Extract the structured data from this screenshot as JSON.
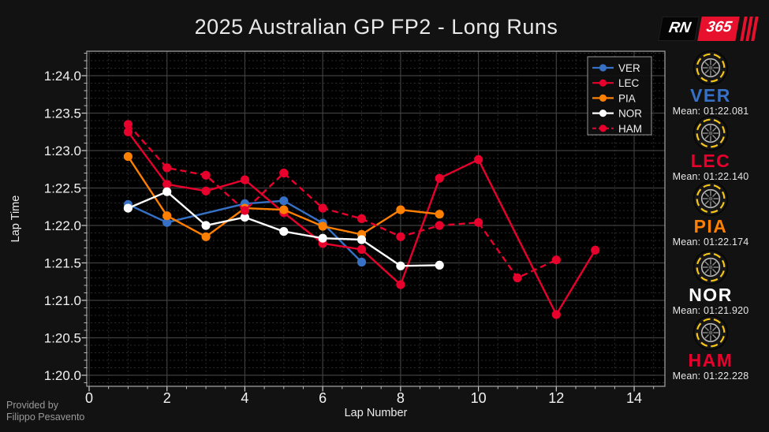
{
  "header": {
    "title": "2025 Australian GP FP2 - Long Runs"
  },
  "logo": {
    "rn": "RN",
    "num": "365"
  },
  "credit": {
    "line1": "Provided by",
    "line2": "Filippo Pesavento"
  },
  "chart_data": {
    "type": "line",
    "title": "2025 Australian GP FP2 - Long Runs",
    "xlabel": "Lap Number",
    "ylabel": "Lap Time",
    "grid": true,
    "legend_position": "top-right",
    "xlim": [
      -0.1,
      14.8
    ],
    "ylim_seconds": [
      79.85,
      84.33
    ],
    "xticks": {
      "values": [
        0,
        2,
        4,
        6,
        8,
        10,
        12,
        14
      ],
      "labels": [
        "0",
        "2",
        "4",
        "6",
        "8",
        "10",
        "12",
        "14"
      ]
    },
    "yticks": {
      "values": [
        84.0,
        83.5,
        83.0,
        82.5,
        82.0,
        81.5,
        81.0,
        80.5,
        80.0
      ],
      "labels": [
        "1:24.0",
        "1:23.5",
        "1:23.0",
        "1:22.5",
        "1:22.0",
        "1:21.5",
        "1:21.0",
        "1:20.5",
        "1:20.0"
      ]
    },
    "minor_x_step": 0.5,
    "minor_y_step": 0.1,
    "series": [
      {
        "name": "VER",
        "color": "#3671C6",
        "line_style": "solid",
        "x": [
          1,
          2,
          4,
          5,
          6,
          7
        ],
        "y": [
          82.28,
          82.04,
          82.29,
          82.33,
          82.03,
          81.51
        ]
      },
      {
        "name": "LEC",
        "color": "#E8002D",
        "line_style": "solid",
        "x": [
          1,
          2,
          3,
          4,
          5,
          6,
          7,
          8,
          9,
          10,
          12,
          13
        ],
        "y": [
          83.25,
          82.55,
          82.46,
          82.61,
          82.17,
          81.76,
          81.68,
          81.21,
          82.63,
          82.88,
          80.81,
          81.67
        ]
      },
      {
        "name": "PIA",
        "color": "#FF8000",
        "line_style": "solid",
        "x": [
          1,
          2,
          3,
          4,
          5,
          6,
          7,
          8,
          9
        ],
        "y": [
          82.92,
          82.13,
          81.85,
          82.23,
          82.21,
          81.99,
          81.88,
          82.21,
          82.15
        ]
      },
      {
        "name": "NOR",
        "color": "#FFFFFF",
        "line_style": "solid",
        "x": [
          1,
          2,
          3,
          4,
          5,
          6,
          7,
          8,
          9
        ],
        "y": [
          82.23,
          82.45,
          82.0,
          82.11,
          81.92,
          81.83,
          81.81,
          81.46,
          81.47
        ]
      },
      {
        "name": "HAM",
        "color": "#E8002D",
        "line_style": "dashed",
        "x": [
          1,
          2,
          3,
          4,
          5,
          6,
          7,
          8,
          9,
          10,
          11,
          12
        ],
        "y": [
          83.35,
          82.77,
          82.67,
          82.2,
          82.7,
          82.23,
          82.09,
          81.85,
          82.0,
          82.04,
          81.3,
          81.54
        ]
      }
    ]
  },
  "sidebar": {
    "drivers": [
      {
        "code": "VER",
        "color": "#3671C6",
        "mean_label": "Mean: 01:22.081",
        "tyre": "medium-tyre-icon"
      },
      {
        "code": "LEC",
        "color": "#E8002D",
        "mean_label": "Mean: 01:22.140",
        "tyre": "medium-tyre-icon"
      },
      {
        "code": "PIA",
        "color": "#FF8000",
        "mean_label": "Mean: 01:22.174",
        "tyre": "medium-tyre-icon"
      },
      {
        "code": "NOR",
        "color": "#FFFFFF",
        "mean_label": "Mean: 01:21.920",
        "tyre": "medium-tyre-icon"
      },
      {
        "code": "HAM",
        "color": "#E8002D",
        "mean_label": "Mean: 01:22.228",
        "tyre": "medium-tyre-icon"
      }
    ]
  },
  "theme": {
    "background": "#121212",
    "plot_background": "#000000",
    "major_grid": "#3f3f3f",
    "minor_grid": "#2a2a2a",
    "spine": "#a8a8a8",
    "tick_label": "#f2f2f2",
    "legend_border": "#8a8a8a",
    "tyre_band_yellow": "#f5c518",
    "logo_red": "#e8112d"
  }
}
